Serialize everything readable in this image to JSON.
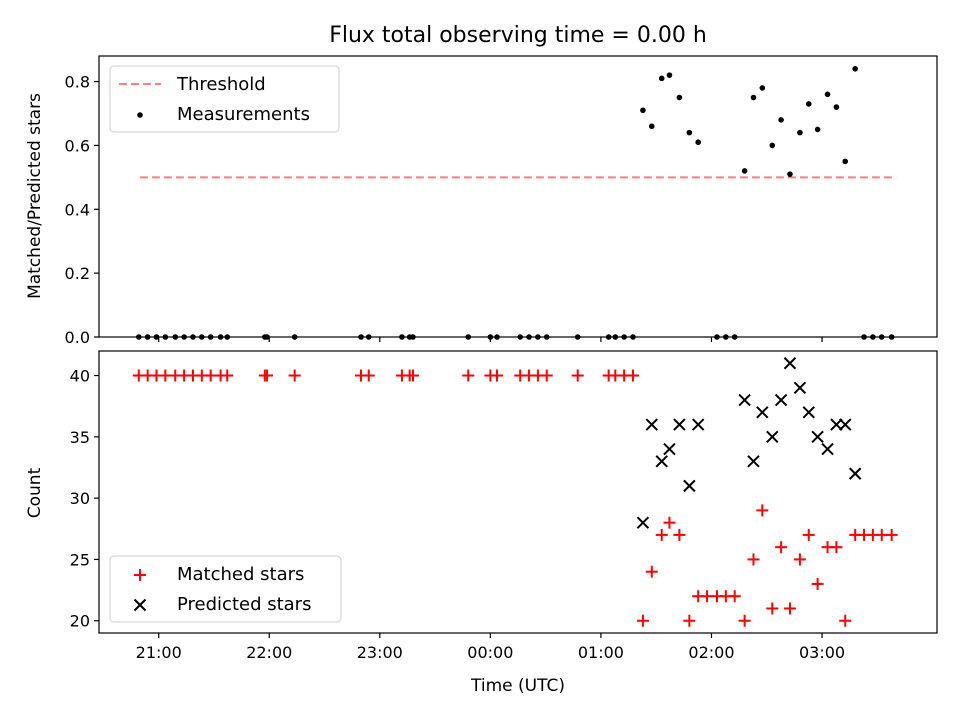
{
  "title": "Flux total observing time = 0.00 h",
  "xlabel": "Time (UTC)",
  "xtick_labels": [
    "21:00",
    "22:00",
    "23:00",
    "00:00",
    "01:00",
    "02:00",
    "03:00"
  ],
  "colors": {
    "threshold": "#ff7f7f",
    "measurements": "#000000",
    "matched": "#ff0000",
    "predicted": "#000000"
  },
  "chart_data": [
    {
      "type": "scatter",
      "ylabel": "Matched/Predicted stars",
      "xlim_hours": [
        20.46,
        28.04
      ],
      "ylim": [
        0,
        0.88
      ],
      "yticks": [
        0.0,
        0.2,
        0.4,
        0.6,
        0.8
      ],
      "ytick_labels": [
        "0.0",
        "0.2",
        "0.4",
        "0.6",
        "0.8"
      ],
      "legend_position": "top-left",
      "threshold": {
        "name": "Threshold",
        "value": 0.5,
        "x_range_hours": [
          20.83,
          27.67
        ]
      },
      "legend": [
        "Threshold",
        "Measurements"
      ],
      "series": [
        {
          "name": "Measurements",
          "marker": "dot",
          "x_hours": [
            20.82,
            20.9,
            20.98,
            21.06,
            21.15,
            21.23,
            21.31,
            21.39,
            21.47,
            21.56,
            21.62,
            21.96,
            21.98,
            22.23,
            22.83,
            22.9,
            23.2,
            23.27,
            23.3,
            23.8,
            24.0,
            24.06,
            24.27,
            24.35,
            24.43,
            24.51,
            24.79,
            25.07,
            25.13,
            25.21,
            25.29,
            25.38,
            25.46,
            25.55,
            25.62,
            25.71,
            25.8,
            25.88,
            26.05,
            26.13,
            26.21,
            26.3,
            26.38,
            26.46,
            26.55,
            26.63,
            26.71,
            26.8,
            26.88,
            26.96,
            27.05,
            27.13,
            27.21,
            27.3,
            27.38,
            27.46,
            27.54,
            27.63
          ],
          "y": [
            0,
            0,
            0,
            0,
            0,
            0,
            0,
            0,
            0,
            0,
            0,
            0,
            0,
            0,
            0,
            0,
            0,
            0,
            0,
            0,
            0,
            0,
            0,
            0,
            0,
            0,
            0,
            0,
            0,
            0,
            0,
            0.71,
            0.66,
            0.81,
            0.82,
            0.75,
            0.64,
            0.61,
            0,
            0,
            0,
            0.52,
            0.75,
            0.78,
            0.6,
            0.68,
            0.51,
            0.64,
            0.73,
            0.65,
            0.76,
            0.72,
            0.55,
            0.84,
            0,
            0,
            0,
            0
          ]
        }
      ]
    },
    {
      "type": "scatter",
      "ylabel": "Count",
      "xlim_hours": [
        20.46,
        28.04
      ],
      "ylim": [
        19.0,
        42.0
      ],
      "yticks": [
        20,
        25,
        30,
        35,
        40
      ],
      "ytick_labels": [
        "20",
        "25",
        "30",
        "35",
        "40"
      ],
      "legend_position": "bottom-left",
      "legend": [
        "Matched stars",
        "Predicted stars"
      ],
      "series": [
        {
          "name": "Matched stars",
          "marker": "plus",
          "x_hours": [
            20.82,
            20.9,
            20.98,
            21.06,
            21.15,
            21.23,
            21.31,
            21.39,
            21.47,
            21.56,
            21.62,
            21.96,
            21.98,
            22.23,
            22.83,
            22.9,
            23.2,
            23.27,
            23.3,
            23.8,
            24.0,
            24.06,
            24.27,
            24.35,
            24.43,
            24.51,
            24.79,
            25.07,
            25.13,
            25.21,
            25.29,
            25.38,
            25.46,
            25.55,
            25.62,
            25.71,
            25.8,
            25.88,
            25.96,
            26.05,
            26.13,
            26.21,
            26.3,
            26.38,
            26.46,
            26.55,
            26.63,
            26.71,
            26.8,
            26.88,
            26.96,
            27.05,
            27.13,
            27.21,
            27.3,
            27.38,
            27.46,
            27.54,
            27.63
          ],
          "y": [
            40,
            40,
            40,
            40,
            40,
            40,
            40,
            40,
            40,
            40,
            40,
            40,
            40,
            40,
            40,
            40,
            40,
            40,
            40,
            40,
            40,
            40,
            40,
            40,
            40,
            40,
            40,
            40,
            40,
            40,
            40,
            20,
            24,
            27,
            28,
            27,
            20,
            22,
            22,
            22,
            22,
            22,
            20,
            25,
            29,
            21,
            26,
            21,
            25,
            27,
            23,
            26,
            26,
            20,
            27,
            27,
            27,
            27,
            27
          ]
        },
        {
          "name": "Predicted stars",
          "marker": "x",
          "x_hours": [
            25.38,
            25.46,
            25.55,
            25.62,
            25.71,
            25.8,
            25.88,
            26.3,
            26.38,
            26.46,
            26.55,
            26.63,
            26.71,
            26.8,
            26.88,
            26.96,
            27.05,
            27.13,
            27.21,
            27.3
          ],
          "y": [
            28,
            36,
            33,
            34,
            36,
            31,
            36,
            38,
            33,
            37,
            35,
            38,
            41,
            39,
            37,
            35,
            34,
            36,
            36,
            32
          ]
        }
      ]
    }
  ]
}
